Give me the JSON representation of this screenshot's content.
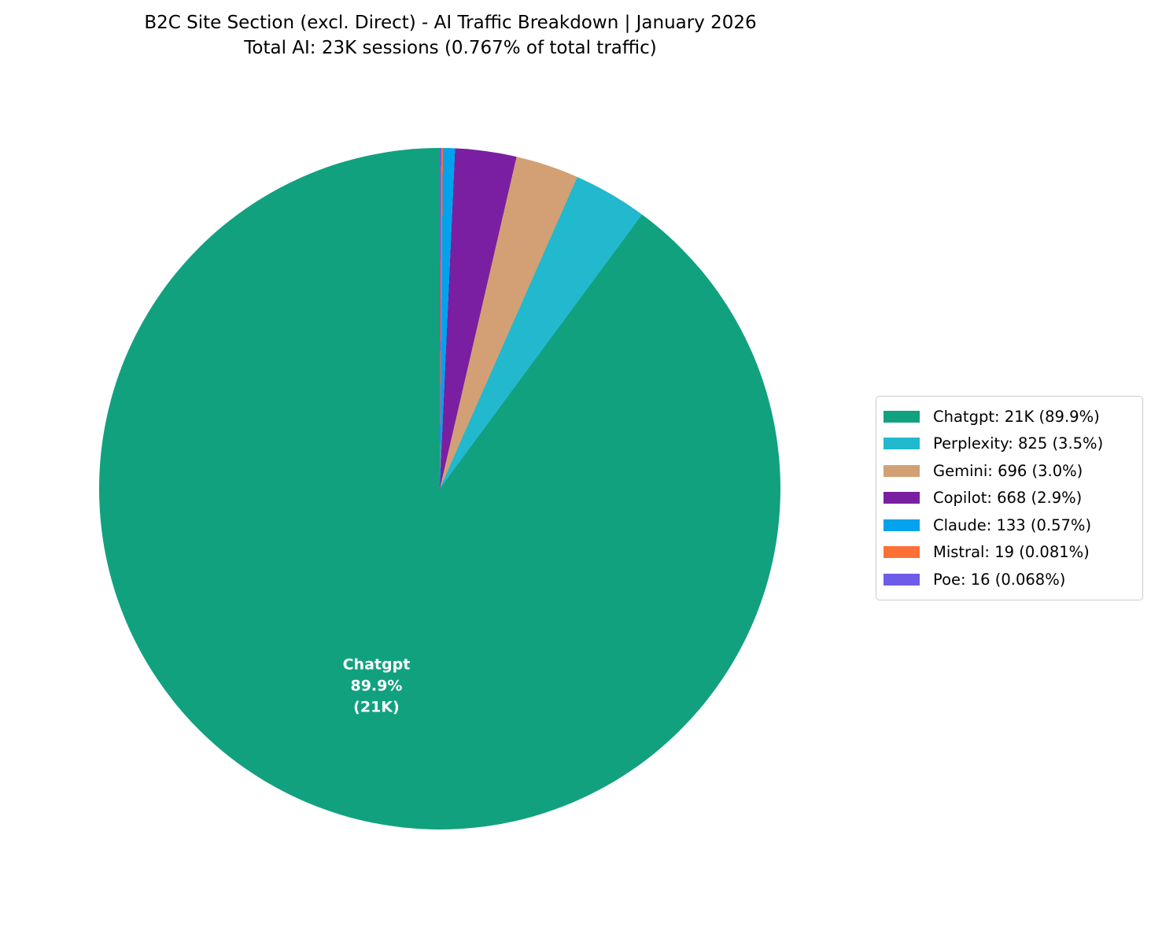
{
  "header": {
    "title": "B2C Site Section (excl. Direct) - AI Traffic Breakdown | January 2026",
    "subtitle": "Total AI: 23K sessions (0.767% of total traffic)"
  },
  "chart_data": {
    "type": "pie",
    "title": "B2C Site Section (excl. Direct) - AI Traffic Breakdown | January 2026",
    "subtitle": "Total AI: 23K sessions (0.767% of total traffic)",
    "start_angle_deg": 90,
    "direction": "counterclockwise",
    "legend_position": "center right",
    "series": [
      {
        "name": "Chatgpt",
        "value_label": "21K",
        "pct": 89.9,
        "pct_label": "89.9%",
        "color": "#12A17F",
        "legend_label": "Chatgpt: 21K (89.9%)"
      },
      {
        "name": "Perplexity",
        "value_label": "825",
        "pct": 3.5,
        "pct_label": "3.5%",
        "color": "#22B8CE",
        "legend_label": "Perplexity: 825 (3.5%)"
      },
      {
        "name": "Gemini",
        "value_label": "696",
        "pct": 3.0,
        "pct_label": "3.0%",
        "color": "#D2A074",
        "legend_label": "Gemini: 696 (3.0%)"
      },
      {
        "name": "Copilot",
        "value_label": "668",
        "pct": 2.9,
        "pct_label": "2.9%",
        "color": "#7B1FA2",
        "legend_label": "Copilot: 668 (2.9%)"
      },
      {
        "name": "Claude",
        "value_label": "133",
        "pct": 0.57,
        "pct_label": "0.57%",
        "color": "#02A2ED",
        "legend_label": "Claude: 133 (0.57%)"
      },
      {
        "name": "Mistral",
        "value_label": "19",
        "pct": 0.081,
        "pct_label": "0.081%",
        "color": "#FD6F35",
        "legend_label": "Mistral: 19 (0.081%)"
      },
      {
        "name": "Poe",
        "value_label": "16",
        "pct": 0.068,
        "pct_label": "0.068%",
        "color": "#6C5CE7",
        "legend_label": "Poe: 16 (0.068%)"
      }
    ],
    "slice_label": {
      "line1": "Chatgpt",
      "line2": "89.9%",
      "line3": "(21K)"
    }
  }
}
